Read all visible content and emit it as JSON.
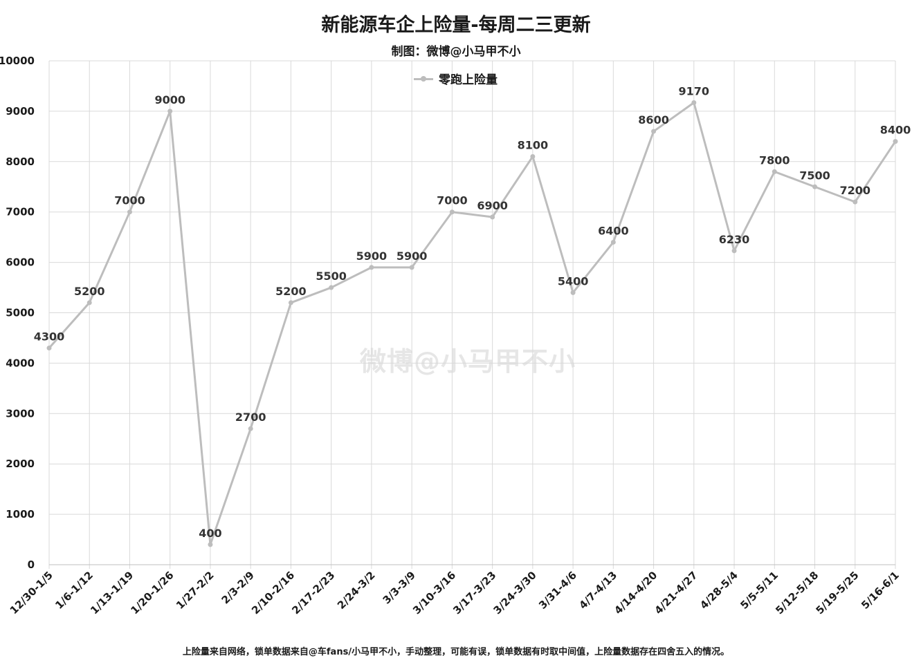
{
  "title": "新能源车企上险量-每周二三更新",
  "subtitle": "制图：微博@小马甲不小",
  "watermark": "微博@小马甲不小",
  "footnote": "上险量来自网络，锁单数据来自@车fans/小马甲不小，手动整理，可能有误，锁单数据有时取中间值，上险量数据存在四舍五入的情况。",
  "chart_data": {
    "type": "line",
    "title": "新能源车企上险量-每周二三更新",
    "subtitle": "制图：微博@小马甲不小",
    "xlabel": "",
    "ylabel": "",
    "ylim": [
      0,
      10000
    ],
    "yticks": [
      "0",
      "1000",
      "2000",
      "3000",
      "4000",
      "5000",
      "6000",
      "7000",
      "8000",
      "9000",
      "10000"
    ],
    "grid": true,
    "legend_position": "top-center",
    "categories": [
      "12/30-1/5",
      "1/6-1/12",
      "1/13-1/19",
      "1/20-1/26",
      "1/27-2/2",
      "2/3-2/9",
      "2/10-2/16",
      "2/17-2/23",
      "2/24-3/2",
      "3/3-3/9",
      "3/10-3/16",
      "3/17-3/23",
      "3/24-3/30",
      "3/31-4/6",
      "4/7-4/13",
      "4/14-4/20",
      "4/21-4/27",
      "4/28-5/4",
      "5/5-5/11",
      "5/12-5/18",
      "5/19-5/25",
      "5/16-6/1"
    ],
    "series": [
      {
        "name": "零跑上险量",
        "color": "#bdbdbd",
        "values": [
          4300,
          5200,
          7000,
          9000,
          400,
          2700,
          5200,
          5500,
          5900,
          5900,
          7000,
          6900,
          8100,
          5400,
          6400,
          8600,
          9170,
          6230,
          7800,
          7500,
          7200,
          8400
        ]
      }
    ]
  }
}
